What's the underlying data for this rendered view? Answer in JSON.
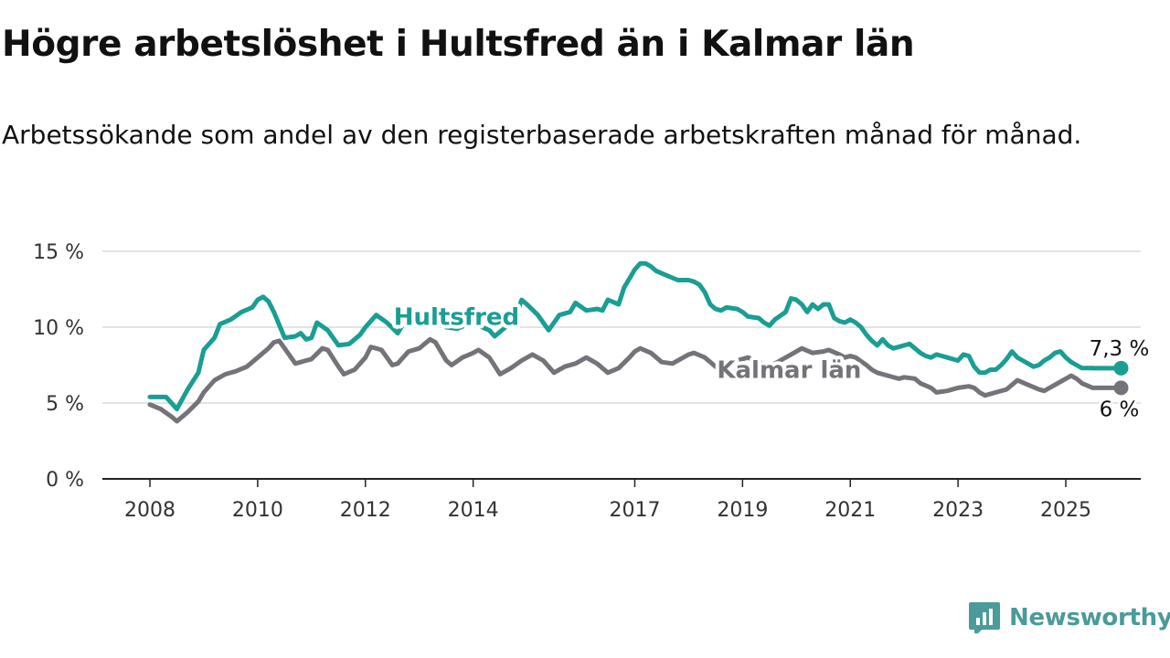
{
  "title": "Högre arbetslöshet i Hultsfred än i Kalmar län",
  "subtitle": "Arbetssökande som andel av den registerbaserade arbetskraften månad för månad.",
  "brand": {
    "name": "Newsworthy",
    "color": "#4a9b9a"
  },
  "chart_data": {
    "type": "line",
    "xlabel": "",
    "ylabel": "",
    "ylim": [
      0,
      15
    ],
    "xlim": [
      2008,
      2025.8
    ],
    "y_ticks": [
      {
        "value": 0,
        "label": "0 %"
      },
      {
        "value": 5,
        "label": "5 %"
      },
      {
        "value": 10,
        "label": "10 %"
      },
      {
        "value": 15,
        "label": "15 %"
      }
    ],
    "x_ticks": [
      {
        "value": 2008,
        "label": "2008"
      },
      {
        "value": 2010,
        "label": "2010"
      },
      {
        "value": 2012,
        "label": "2012"
      },
      {
        "value": 2014,
        "label": "2014"
      },
      {
        "value": 2017,
        "label": "2017"
      },
      {
        "value": 2019,
        "label": "2019"
      },
      {
        "value": 2021,
        "label": "2021"
      },
      {
        "value": 2023,
        "label": "2023"
      },
      {
        "value": 2025,
        "label": "2025"
      }
    ],
    "grid": "horizontal",
    "series": [
      {
        "name": "Hultsfred",
        "color": "#1a9e94",
        "end_label": "7,3 %",
        "points": [
          [
            2008.0,
            5.4
          ],
          [
            2008.3,
            5.4
          ],
          [
            2008.5,
            4.6
          ],
          [
            2008.7,
            5.9
          ],
          [
            2008.9,
            7.0
          ],
          [
            2009.0,
            8.5
          ],
          [
            2009.2,
            9.3
          ],
          [
            2009.3,
            10.2
          ],
          [
            2009.5,
            10.5
          ],
          [
            2009.7,
            11.0
          ],
          [
            2009.9,
            11.3
          ],
          [
            2010.0,
            11.8
          ],
          [
            2010.1,
            12.0
          ],
          [
            2010.2,
            11.7
          ],
          [
            2010.3,
            11.0
          ],
          [
            2010.5,
            9.3
          ],
          [
            2010.7,
            9.4
          ],
          [
            2010.8,
            9.6
          ],
          [
            2010.9,
            9.2
          ],
          [
            2011.0,
            9.3
          ],
          [
            2011.1,
            10.3
          ],
          [
            2011.3,
            9.8
          ],
          [
            2011.5,
            8.8
          ],
          [
            2011.7,
            8.9
          ],
          [
            2011.9,
            9.5
          ],
          [
            2012.0,
            10.0
          ],
          [
            2012.2,
            10.8
          ],
          [
            2012.4,
            10.3
          ],
          [
            2012.6,
            9.6
          ],
          [
            2012.7,
            10.2
          ],
          [
            2012.9,
            10.8
          ],
          [
            2013.1,
            10.5
          ],
          [
            2013.3,
            11.0
          ],
          [
            2013.5,
            10.0
          ],
          [
            2013.7,
            9.9
          ],
          [
            2013.9,
            10.2
          ],
          [
            2014.1,
            10.1
          ],
          [
            2014.3,
            9.8
          ],
          [
            2014.4,
            9.4
          ],
          [
            2014.6,
            10.0
          ],
          [
            2014.8,
            10.8
          ],
          [
            2014.9,
            11.8
          ],
          [
            2015.0,
            11.5
          ],
          [
            2015.2,
            10.8
          ],
          [
            2015.4,
            9.8
          ],
          [
            2015.6,
            10.8
          ],
          [
            2015.8,
            11.0
          ],
          [
            2015.9,
            11.6
          ],
          [
            2016.1,
            11.1
          ],
          [
            2016.3,
            11.2
          ],
          [
            2016.4,
            11.1
          ],
          [
            2016.5,
            11.8
          ],
          [
            2016.7,
            11.5
          ],
          [
            2016.8,
            12.6
          ],
          [
            2016.9,
            13.2
          ],
          [
            2017.0,
            13.8
          ],
          [
            2017.1,
            14.2
          ],
          [
            2017.2,
            14.2
          ],
          [
            2017.3,
            14.0
          ],
          [
            2017.4,
            13.7
          ],
          [
            2017.6,
            13.4
          ],
          [
            2017.8,
            13.1
          ],
          [
            2017.9,
            13.1
          ],
          [
            2018.0,
            13.1
          ],
          [
            2018.1,
            13.0
          ],
          [
            2018.2,
            12.8
          ],
          [
            2018.3,
            12.3
          ],
          [
            2018.4,
            11.5
          ],
          [
            2018.5,
            11.2
          ],
          [
            2018.6,
            11.1
          ],
          [
            2018.7,
            11.3
          ],
          [
            2018.9,
            11.2
          ],
          [
            2019.0,
            11.0
          ],
          [
            2019.1,
            10.7
          ],
          [
            2019.3,
            10.6
          ],
          [
            2019.4,
            10.3
          ],
          [
            2019.5,
            10.1
          ],
          [
            2019.6,
            10.5
          ],
          [
            2019.8,
            11.0
          ],
          [
            2019.9,
            11.9
          ],
          [
            2020.0,
            11.8
          ],
          [
            2020.1,
            11.5
          ],
          [
            2020.2,
            11.0
          ],
          [
            2020.3,
            11.5
          ],
          [
            2020.4,
            11.2
          ],
          [
            2020.5,
            11.5
          ],
          [
            2020.6,
            11.5
          ],
          [
            2020.7,
            10.6
          ],
          [
            2020.8,
            10.4
          ],
          [
            2020.9,
            10.3
          ],
          [
            2021.0,
            10.5
          ],
          [
            2021.1,
            10.3
          ],
          [
            2021.2,
            10.0
          ],
          [
            2021.3,
            9.5
          ],
          [
            2021.4,
            9.1
          ],
          [
            2021.5,
            8.8
          ],
          [
            2021.6,
            9.2
          ],
          [
            2021.7,
            8.8
          ],
          [
            2021.8,
            8.6
          ],
          [
            2021.9,
            8.7
          ],
          [
            2022.0,
            8.8
          ],
          [
            2022.1,
            8.9
          ],
          [
            2022.2,
            8.6
          ],
          [
            2022.3,
            8.3
          ],
          [
            2022.4,
            8.1
          ],
          [
            2022.5,
            8.0
          ],
          [
            2022.6,
            8.2
          ],
          [
            2022.7,
            8.1
          ],
          [
            2022.8,
            8.0
          ],
          [
            2022.9,
            7.9
          ],
          [
            2023.0,
            7.8
          ],
          [
            2023.1,
            8.2
          ],
          [
            2023.2,
            8.1
          ],
          [
            2023.3,
            7.4
          ],
          [
            2023.4,
            7.0
          ],
          [
            2023.5,
            7.0
          ],
          [
            2023.6,
            7.2
          ],
          [
            2023.7,
            7.2
          ],
          [
            2023.8,
            7.5
          ],
          [
            2023.9,
            7.9
          ],
          [
            2024.0,
            8.4
          ],
          [
            2024.1,
            8.0
          ],
          [
            2024.2,
            7.8
          ],
          [
            2024.3,
            7.6
          ],
          [
            2024.4,
            7.4
          ],
          [
            2024.5,
            7.5
          ],
          [
            2024.6,
            7.8
          ],
          [
            2024.7,
            8.0
          ],
          [
            2024.8,
            8.3
          ],
          [
            2024.9,
            8.4
          ],
          [
            2025.0,
            8.0
          ],
          [
            2025.1,
            7.7
          ],
          [
            2025.2,
            7.5
          ],
          [
            2025.3,
            7.3
          ],
          [
            2025.5,
            7.3
          ]
        ]
      },
      {
        "name": "Kalmar län",
        "color": "#75727a",
        "end_label": "6 %",
        "points": [
          [
            2008.0,
            4.9
          ],
          [
            2008.2,
            4.6
          ],
          [
            2008.4,
            4.1
          ],
          [
            2008.5,
            3.8
          ],
          [
            2008.7,
            4.4
          ],
          [
            2008.9,
            5.1
          ],
          [
            2009.0,
            5.7
          ],
          [
            2009.2,
            6.5
          ],
          [
            2009.4,
            6.9
          ],
          [
            2009.6,
            7.1
          ],
          [
            2009.8,
            7.4
          ],
          [
            2010.0,
            8.0
          ],
          [
            2010.2,
            8.6
          ],
          [
            2010.3,
            9.0
          ],
          [
            2010.4,
            9.1
          ],
          [
            2010.5,
            8.6
          ],
          [
            2010.7,
            7.6
          ],
          [
            2010.8,
            7.7
          ],
          [
            2010.9,
            7.8
          ],
          [
            2011.0,
            7.9
          ],
          [
            2011.2,
            8.6
          ],
          [
            2011.3,
            8.5
          ],
          [
            2011.5,
            7.4
          ],
          [
            2011.6,
            6.9
          ],
          [
            2011.8,
            7.2
          ],
          [
            2012.0,
            8.0
          ],
          [
            2012.1,
            8.7
          ],
          [
            2012.3,
            8.5
          ],
          [
            2012.5,
            7.5
          ],
          [
            2012.6,
            7.6
          ],
          [
            2012.8,
            8.4
          ],
          [
            2013.0,
            8.6
          ],
          [
            2013.2,
            9.2
          ],
          [
            2013.3,
            9.0
          ],
          [
            2013.5,
            7.8
          ],
          [
            2013.6,
            7.5
          ],
          [
            2013.8,
            8.0
          ],
          [
            2014.0,
            8.3
          ],
          [
            2014.1,
            8.5
          ],
          [
            2014.3,
            8.0
          ],
          [
            2014.5,
            6.9
          ],
          [
            2014.7,
            7.3
          ],
          [
            2014.9,
            7.8
          ],
          [
            2015.1,
            8.2
          ],
          [
            2015.3,
            7.8
          ],
          [
            2015.5,
            7.0
          ],
          [
            2015.7,
            7.4
          ],
          [
            2015.9,
            7.6
          ],
          [
            2016.1,
            8.0
          ],
          [
            2016.3,
            7.6
          ],
          [
            2016.5,
            7.0
          ],
          [
            2016.7,
            7.3
          ],
          [
            2016.9,
            8.0
          ],
          [
            2017.0,
            8.4
          ],
          [
            2017.1,
            8.6
          ],
          [
            2017.3,
            8.3
          ],
          [
            2017.5,
            7.7
          ],
          [
            2017.7,
            7.6
          ],
          [
            2017.9,
            8.0
          ],
          [
            2018.0,
            8.2
          ],
          [
            2018.1,
            8.3
          ],
          [
            2018.3,
            8.0
          ],
          [
            2018.5,
            7.4
          ],
          [
            2018.7,
            7.5
          ],
          [
            2018.9,
            7.8
          ],
          [
            2019.1,
            8.0
          ],
          [
            2019.3,
            7.7
          ],
          [
            2019.5,
            7.4
          ],
          [
            2019.7,
            7.8
          ],
          [
            2019.9,
            8.2
          ],
          [
            2020.1,
            8.6
          ],
          [
            2020.3,
            8.3
          ],
          [
            2020.5,
            8.4
          ],
          [
            2020.6,
            8.5
          ],
          [
            2020.8,
            8.2
          ],
          [
            2020.9,
            8.0
          ],
          [
            2021.0,
            8.1
          ],
          [
            2021.1,
            8.0
          ],
          [
            2021.3,
            7.5
          ],
          [
            2021.4,
            7.2
          ],
          [
            2021.5,
            7.0
          ],
          [
            2021.7,
            6.8
          ],
          [
            2021.9,
            6.6
          ],
          [
            2022.0,
            6.7
          ],
          [
            2022.2,
            6.6
          ],
          [
            2022.3,
            6.3
          ],
          [
            2022.5,
            6.0
          ],
          [
            2022.6,
            5.7
          ],
          [
            2022.8,
            5.8
          ],
          [
            2023.0,
            6.0
          ],
          [
            2023.2,
            6.1
          ],
          [
            2023.3,
            6.0
          ],
          [
            2023.4,
            5.7
          ],
          [
            2023.5,
            5.5
          ],
          [
            2023.7,
            5.7
          ],
          [
            2023.9,
            5.9
          ],
          [
            2024.0,
            6.2
          ],
          [
            2024.1,
            6.5
          ],
          [
            2024.3,
            6.2
          ],
          [
            2024.5,
            5.9
          ],
          [
            2024.6,
            5.8
          ],
          [
            2024.8,
            6.2
          ],
          [
            2025.0,
            6.6
          ],
          [
            2025.1,
            6.8
          ],
          [
            2025.2,
            6.6
          ],
          [
            2025.3,
            6.3
          ],
          [
            2025.5,
            6.0
          ]
        ]
      }
    ],
    "annotations": [
      {
        "text": "Hultsfred",
        "series": "Hultsfred",
        "x": 2013.0,
        "y": 10.7
      },
      {
        "text": "Kalmar län",
        "series": "Kalmar län",
        "x": 2019.0,
        "y": 7.2
      }
    ]
  }
}
